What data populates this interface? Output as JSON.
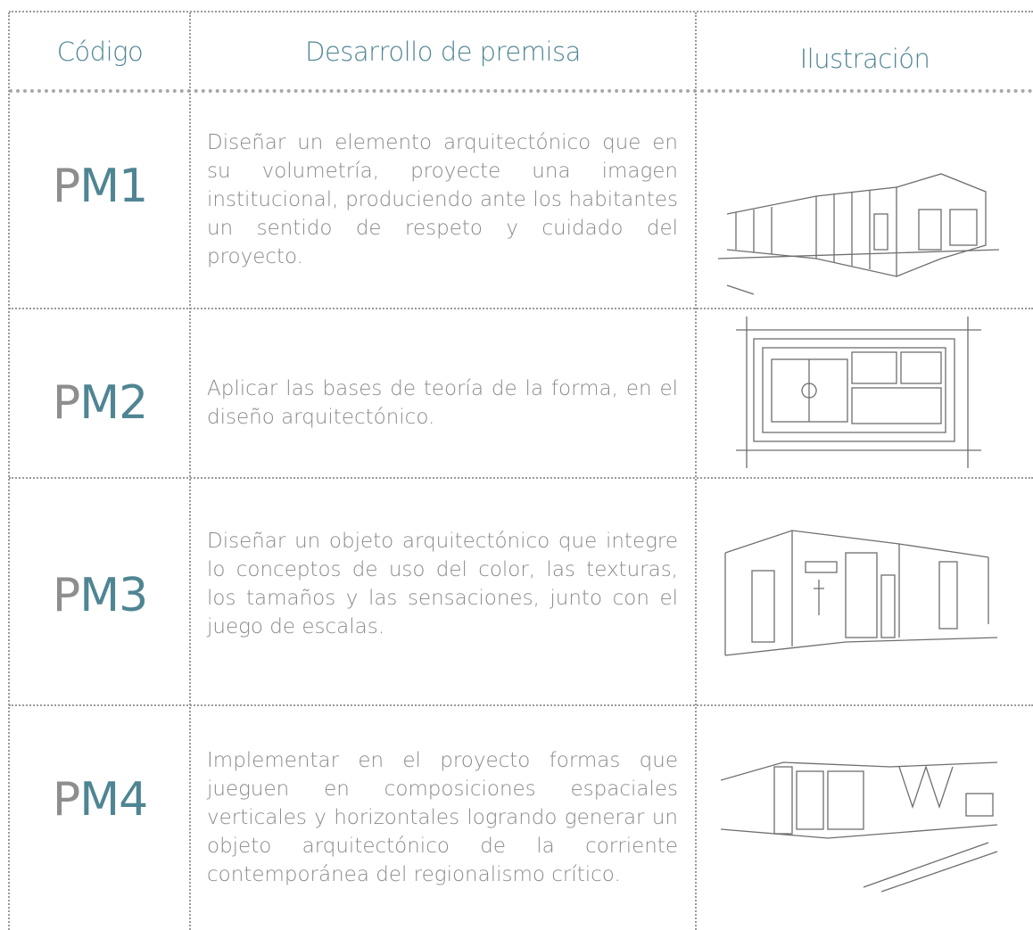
{
  "header": {
    "code": "Código",
    "premise": "Desarrollo de premisa",
    "illustration": "Ilustración"
  },
  "rows": [
    {
      "code": "PM1",
      "text": "Diseñar un elemento arquitectónico que en su volumetría, proyecte una imagen institucional, produciendo ante los habitantes un sentido de respeto y cuidado del proyecto."
    },
    {
      "code": "PM2",
      "text": "Aplicar las bases de teoría de la forma, en el diseño arquitectónico."
    },
    {
      "code": "PM3",
      "text": "Diseñar un objeto arquitectónico que integre lo conceptos de uso del color, las texturas, los tamaños y las sensaciones, junto con el juego de escalas."
    },
    {
      "code": "PM4",
      "text": "Implementar en el proyecto formas que jueguen en composiciones espaciales verticales y horizontales logrando generar un objeto arquitectónico de la corriente contemporánea del regionalismo crítico."
    }
  ]
}
